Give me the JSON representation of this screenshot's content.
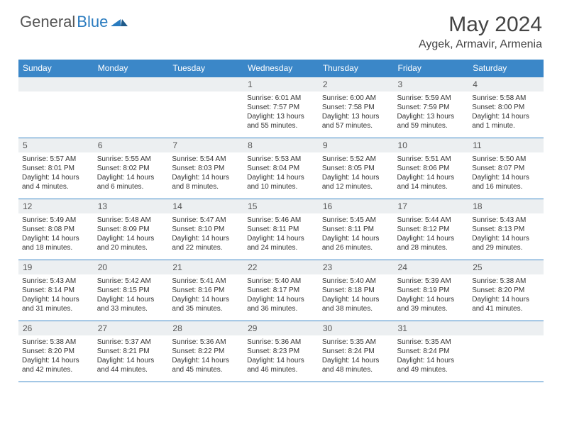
{
  "logo": {
    "part1": "General",
    "part2": "Blue"
  },
  "title": "May 2024",
  "subtitle": "Aygek, Armavir, Armenia",
  "colors": {
    "header_bg": "#3b87c8",
    "header_text": "#ffffff",
    "daynum_bg": "#eceff1",
    "border": "#3b87c8",
    "logo_blue": "#2a7bbf"
  },
  "day_headers": [
    "Sunday",
    "Monday",
    "Tuesday",
    "Wednesday",
    "Thursday",
    "Friday",
    "Saturday"
  ],
  "weeks": [
    [
      null,
      null,
      null,
      {
        "n": "1",
        "sr": "6:01 AM",
        "ss": "7:57 PM",
        "dl": "13 hours and 55 minutes."
      },
      {
        "n": "2",
        "sr": "6:00 AM",
        "ss": "7:58 PM",
        "dl": "13 hours and 57 minutes."
      },
      {
        "n": "3",
        "sr": "5:59 AM",
        "ss": "7:59 PM",
        "dl": "13 hours and 59 minutes."
      },
      {
        "n": "4",
        "sr": "5:58 AM",
        "ss": "8:00 PM",
        "dl": "14 hours and 1 minute."
      }
    ],
    [
      {
        "n": "5",
        "sr": "5:57 AM",
        "ss": "8:01 PM",
        "dl": "14 hours and 4 minutes."
      },
      {
        "n": "6",
        "sr": "5:55 AM",
        "ss": "8:02 PM",
        "dl": "14 hours and 6 minutes."
      },
      {
        "n": "7",
        "sr": "5:54 AM",
        "ss": "8:03 PM",
        "dl": "14 hours and 8 minutes."
      },
      {
        "n": "8",
        "sr": "5:53 AM",
        "ss": "8:04 PM",
        "dl": "14 hours and 10 minutes."
      },
      {
        "n": "9",
        "sr": "5:52 AM",
        "ss": "8:05 PM",
        "dl": "14 hours and 12 minutes."
      },
      {
        "n": "10",
        "sr": "5:51 AM",
        "ss": "8:06 PM",
        "dl": "14 hours and 14 minutes."
      },
      {
        "n": "11",
        "sr": "5:50 AM",
        "ss": "8:07 PM",
        "dl": "14 hours and 16 minutes."
      }
    ],
    [
      {
        "n": "12",
        "sr": "5:49 AM",
        "ss": "8:08 PM",
        "dl": "14 hours and 18 minutes."
      },
      {
        "n": "13",
        "sr": "5:48 AM",
        "ss": "8:09 PM",
        "dl": "14 hours and 20 minutes."
      },
      {
        "n": "14",
        "sr": "5:47 AM",
        "ss": "8:10 PM",
        "dl": "14 hours and 22 minutes."
      },
      {
        "n": "15",
        "sr": "5:46 AM",
        "ss": "8:11 PM",
        "dl": "14 hours and 24 minutes."
      },
      {
        "n": "16",
        "sr": "5:45 AM",
        "ss": "8:11 PM",
        "dl": "14 hours and 26 minutes."
      },
      {
        "n": "17",
        "sr": "5:44 AM",
        "ss": "8:12 PM",
        "dl": "14 hours and 28 minutes."
      },
      {
        "n": "18",
        "sr": "5:43 AM",
        "ss": "8:13 PM",
        "dl": "14 hours and 29 minutes."
      }
    ],
    [
      {
        "n": "19",
        "sr": "5:43 AM",
        "ss": "8:14 PM",
        "dl": "14 hours and 31 minutes."
      },
      {
        "n": "20",
        "sr": "5:42 AM",
        "ss": "8:15 PM",
        "dl": "14 hours and 33 minutes."
      },
      {
        "n": "21",
        "sr": "5:41 AM",
        "ss": "8:16 PM",
        "dl": "14 hours and 35 minutes."
      },
      {
        "n": "22",
        "sr": "5:40 AM",
        "ss": "8:17 PM",
        "dl": "14 hours and 36 minutes."
      },
      {
        "n": "23",
        "sr": "5:40 AM",
        "ss": "8:18 PM",
        "dl": "14 hours and 38 minutes."
      },
      {
        "n": "24",
        "sr": "5:39 AM",
        "ss": "8:19 PM",
        "dl": "14 hours and 39 minutes."
      },
      {
        "n": "25",
        "sr": "5:38 AM",
        "ss": "8:20 PM",
        "dl": "14 hours and 41 minutes."
      }
    ],
    [
      {
        "n": "26",
        "sr": "5:38 AM",
        "ss": "8:20 PM",
        "dl": "14 hours and 42 minutes."
      },
      {
        "n": "27",
        "sr": "5:37 AM",
        "ss": "8:21 PM",
        "dl": "14 hours and 44 minutes."
      },
      {
        "n": "28",
        "sr": "5:36 AM",
        "ss": "8:22 PM",
        "dl": "14 hours and 45 minutes."
      },
      {
        "n": "29",
        "sr": "5:36 AM",
        "ss": "8:23 PM",
        "dl": "14 hours and 46 minutes."
      },
      {
        "n": "30",
        "sr": "5:35 AM",
        "ss": "8:24 PM",
        "dl": "14 hours and 48 minutes."
      },
      {
        "n": "31",
        "sr": "5:35 AM",
        "ss": "8:24 PM",
        "dl": "14 hours and 49 minutes."
      },
      null
    ]
  ],
  "labels": {
    "sunrise": "Sunrise:",
    "sunset": "Sunset:",
    "daylight": "Daylight:"
  }
}
